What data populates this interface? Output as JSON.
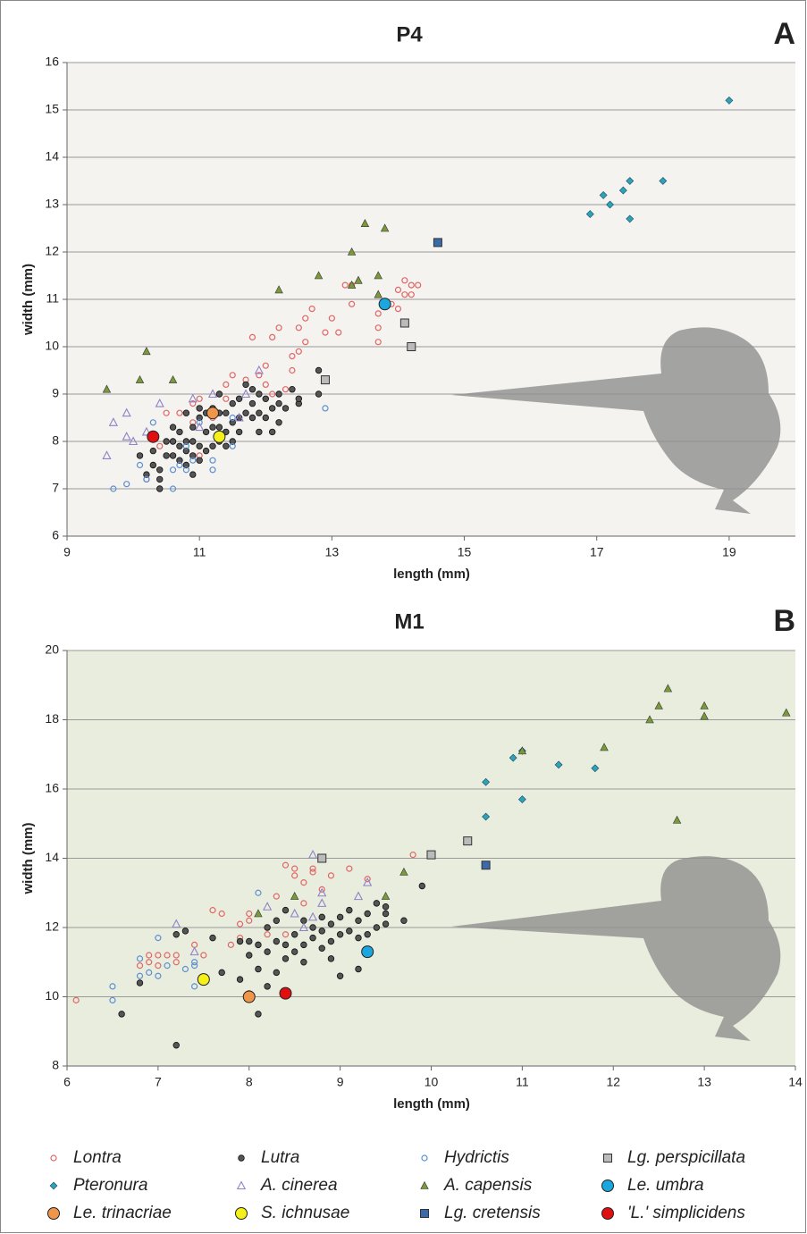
{
  "chart_data": [
    {
      "type": "scatter",
      "title": "P4",
      "panel_label": "A",
      "x_label": "length (mm)",
      "y_label": "width (mm)",
      "background": "#f4f3ef",
      "xlim": [
        9,
        20
      ],
      "xticks": [
        9,
        11,
        13,
        15,
        17,
        19
      ],
      "ylim": [
        6,
        16
      ],
      "yticks": [
        6,
        7,
        8,
        9,
        10,
        11,
        12,
        13,
        14,
        15,
        16
      ],
      "grid": true,
      "series": [
        {
          "name": "Lontra",
          "color": "#e06666",
          "marker": "open-circle",
          "x": [
            10.2,
            10.4,
            10.5,
            10.7,
            10.8,
            10.9,
            11.0,
            11.0,
            11.3,
            11.4,
            11.5,
            11.7,
            11.8,
            11.9,
            12.0,
            12.0,
            12.1,
            12.1,
            12.2,
            12.3,
            12.4,
            12.4,
            12.5,
            12.5,
            12.6,
            12.6,
            12.7,
            12.9,
            13.0,
            13.1,
            13.2,
            13.3,
            13.3,
            13.7,
            13.7,
            13.7,
            13.9,
            14.0,
            14.0,
            14.1,
            14.1,
            14.2,
            14.3,
            14.2,
            11.4,
            11.2,
            10.9
          ],
          "values": [
            7.2,
            7.9,
            8.6,
            8.6,
            8.6,
            8.8,
            8.9,
            7.7,
            9.0,
            9.2,
            9.4,
            9.3,
            10.2,
            9.4,
            9.2,
            9.6,
            9.0,
            10.2,
            10.4,
            9.1,
            9.5,
            9.8,
            10.4,
            9.9,
            10.1,
            10.6,
            10.8,
            10.3,
            10.6,
            10.3,
            11.3,
            10.9,
            11.3,
            10.1,
            10.4,
            10.7,
            10.9,
            11.2,
            10.8,
            11.1,
            11.4,
            11.3,
            11.3,
            11.1,
            8.9,
            8.5,
            8.4
          ]
        },
        {
          "name": "Lutra",
          "color": "#555555",
          "marker": "circle",
          "x": [
            10.1,
            10.2,
            10.3,
            10.4,
            10.4,
            10.4,
            10.5,
            10.5,
            10.6,
            10.6,
            10.7,
            10.7,
            10.7,
            10.8,
            10.8,
            10.8,
            10.9,
            10.9,
            10.9,
            10.9,
            11.0,
            11.0,
            11.0,
            11.1,
            11.1,
            11.1,
            11.2,
            11.2,
            11.2,
            11.3,
            11.3,
            11.3,
            11.4,
            11.4,
            11.4,
            11.5,
            11.5,
            11.5,
            11.6,
            11.6,
            11.6,
            11.7,
            11.7,
            11.8,
            11.8,
            11.9,
            11.9,
            12.0,
            12.0,
            12.1,
            12.1,
            12.2,
            12.2,
            12.3,
            12.4,
            12.5,
            12.5,
            12.8,
            12.8,
            10.3,
            10.6,
            11.3,
            11.8,
            12.2,
            11.9,
            11.0,
            10.8
          ],
          "values": [
            7.7,
            7.3,
            7.5,
            7.0,
            7.2,
            7.4,
            7.7,
            8.0,
            7.7,
            8.0,
            7.6,
            7.9,
            8.2,
            7.5,
            7.8,
            8.0,
            7.3,
            7.7,
            8.0,
            8.3,
            7.6,
            7.9,
            8.5,
            7.8,
            8.2,
            8.6,
            7.9,
            8.3,
            8.7,
            8.0,
            8.3,
            8.6,
            7.9,
            8.2,
            8.6,
            8.0,
            8.4,
            8.8,
            8.2,
            8.5,
            8.9,
            8.6,
            9.2,
            8.5,
            8.8,
            8.6,
            9.0,
            8.5,
            8.9,
            8.2,
            8.7,
            8.4,
            9.0,
            8.7,
            9.1,
            8.8,
            8.9,
            9.5,
            9.0,
            7.8,
            8.3,
            9.0,
            9.1,
            8.8,
            8.2,
            8.7,
            8.6
          ]
        },
        {
          "name": "Hydrictis",
          "color": "#5b8fd0",
          "marker": "open-circle",
          "x": [
            9.7,
            9.9,
            10.1,
            10.2,
            10.3,
            10.6,
            10.6,
            10.7,
            10.8,
            10.9,
            11.0,
            11.2,
            11.2,
            11.5,
            11.5,
            12.9,
            10.8
          ],
          "values": [
            7.0,
            7.1,
            7.5,
            7.2,
            8.4,
            7.0,
            7.4,
            7.5,
            7.9,
            7.6,
            8.4,
            7.4,
            7.6,
            8.5,
            7.9,
            8.7,
            7.4
          ]
        },
        {
          "name": "Lg. perspicillata",
          "color": "#bbbbbb",
          "marker": "square",
          "x": [
            12.9,
            14.1,
            14.2
          ],
          "values": [
            9.3,
            10.5,
            10.0
          ]
        },
        {
          "name": "Pteronura",
          "color": "#2aa5b5",
          "marker": "diamond",
          "x": [
            16.9,
            17.1,
            17.2,
            17.4,
            17.5,
            17.5,
            18.0,
            19.0
          ],
          "values": [
            12.8,
            13.2,
            13.0,
            13.3,
            13.5,
            12.7,
            13.5,
            15.2
          ]
        },
        {
          "name": "A. cinerea",
          "color": "#8f82c8",
          "marker": "open-triangle",
          "x": [
            9.6,
            9.7,
            9.9,
            9.9,
            10.0,
            10.2,
            10.4,
            10.9,
            11.0,
            11.2,
            11.9,
            11.7,
            11.6
          ],
          "values": [
            7.7,
            8.4,
            8.6,
            8.1,
            8.0,
            8.2,
            8.8,
            8.9,
            8.3,
            9.0,
            9.5,
            9.0,
            8.5
          ]
        },
        {
          "name": "A. capensis",
          "color": "#7a9a3a",
          "marker": "triangle",
          "x": [
            9.6,
            10.1,
            10.2,
            10.6,
            12.2,
            12.8,
            13.3,
            13.3,
            13.4,
            13.5,
            13.7,
            13.7,
            13.8
          ],
          "values": [
            9.1,
            9.3,
            9.9,
            9.3,
            11.2,
            11.5,
            11.3,
            12.0,
            11.4,
            12.6,
            11.5,
            11.1,
            12.5
          ]
        },
        {
          "name": "Le. umbra",
          "color": "#1aa7e0",
          "marker": "big-circle",
          "x": [
            13.8
          ],
          "values": [
            10.9
          ]
        },
        {
          "name": "Le. trinacriae",
          "color": "#f0964a",
          "marker": "big-circle",
          "x": [
            11.2
          ],
          "values": [
            8.6
          ]
        },
        {
          "name": "S. ichnusae",
          "color": "#f5ef1a",
          "marker": "big-circle",
          "x": [
            11.3
          ],
          "values": [
            8.1
          ]
        },
        {
          "name": "Lg. cretensis",
          "color": "#3a6aa8",
          "marker": "square",
          "x": [
            14.6
          ],
          "values": [
            12.2
          ]
        },
        {
          "name": "'L.' simplicidens",
          "color": "#e01010",
          "marker": "big-circle",
          "x": [
            10.3
          ],
          "values": [
            8.1
          ]
        }
      ]
    },
    {
      "type": "scatter",
      "title": "M1",
      "panel_label": "B",
      "x_label": "length (mm)",
      "y_label": "width (mm)",
      "background": "#e9eddd",
      "xlim": [
        6,
        14
      ],
      "xticks": [
        6,
        7,
        8,
        9,
        10,
        11,
        12,
        13,
        14
      ],
      "ylim": [
        8,
        20
      ],
      "yticks": [
        8,
        10,
        12,
        14,
        16,
        18,
        20
      ],
      "grid": true,
      "series": [
        {
          "color": "#e06666",
          "marker": "open-circle",
          "x": [
            6.1,
            6.8,
            6.9,
            6.9,
            7.0,
            7.0,
            7.1,
            7.2,
            7.2,
            7.4,
            7.5,
            7.6,
            7.7,
            7.8,
            7.9,
            7.9,
            8.0,
            8.0,
            8.2,
            8.3,
            8.5,
            8.4,
            8.6,
            8.6,
            8.7,
            8.7,
            8.9,
            9.1,
            9.3,
            9.8,
            8.2,
            8.8,
            8.0,
            8.4,
            8.5,
            8.8
          ],
          "values": [
            9.9,
            10.9,
            11.0,
            11.2,
            10.9,
            11.2,
            11.2,
            11.0,
            11.2,
            11.5,
            11.2,
            12.5,
            12.4,
            11.5,
            11.7,
            12.1,
            12.2,
            12.4,
            12.0,
            12.9,
            13.5,
            13.8,
            13.3,
            12.7,
            13.7,
            13.6,
            13.5,
            13.7,
            13.4,
            14.1,
            11.8,
            12.3,
            10.1,
            11.8,
            13.7,
            13.1
          ]
        },
        {
          "color": "#555555",
          "marker": "circle",
          "x": [
            6.6,
            6.8,
            7.2,
            7.2,
            7.3,
            7.6,
            7.7,
            7.9,
            8.0,
            8.0,
            8.1,
            8.1,
            8.1,
            8.2,
            8.2,
            8.3,
            8.3,
            8.3,
            8.4,
            8.4,
            8.4,
            8.5,
            8.5,
            8.6,
            8.6,
            8.6,
            8.7,
            8.7,
            8.8,
            8.8,
            8.8,
            8.9,
            8.9,
            9.0,
            9.0,
            9.0,
            9.1,
            9.1,
            9.2,
            9.2,
            9.3,
            9.3,
            9.4,
            9.4,
            9.5,
            9.5,
            9.7,
            9.9,
            7.9,
            9.2,
            8.9,
            9.5,
            8.2
          ],
          "values": [
            9.5,
            10.4,
            8.6,
            11.8,
            11.9,
            11.7,
            10.7,
            11.6,
            11.2,
            11.6,
            9.5,
            10.8,
            11.5,
            11.3,
            12.0,
            10.7,
            11.6,
            12.2,
            11.1,
            11.5,
            12.5,
            11.3,
            11.8,
            11.0,
            11.5,
            12.2,
            11.7,
            12.0,
            11.4,
            11.9,
            12.3,
            11.6,
            12.1,
            10.6,
            11.8,
            12.3,
            11.9,
            12.5,
            11.7,
            12.2,
            11.8,
            12.4,
            12.0,
            12.7,
            12.1,
            12.6,
            12.2,
            13.2,
            10.5,
            10.8,
            11.1,
            12.4,
            10.3
          ]
        },
        {
          "color": "#5b8fd0",
          "marker": "open-circle",
          "x": [
            6.5,
            6.5,
            6.8,
            6.8,
            6.9,
            7.0,
            7.0,
            7.1,
            7.3,
            7.4,
            7.4,
            7.4,
            8.1
          ],
          "values": [
            10.3,
            9.9,
            10.6,
            11.1,
            10.7,
            10.6,
            11.7,
            10.9,
            10.8,
            10.3,
            10.9,
            11.0,
            13.0
          ]
        },
        {
          "color": "#bbbbbb",
          "marker": "square",
          "x": [
            8.8,
            10.0,
            10.4
          ],
          "values": [
            14.0,
            14.1,
            14.5
          ]
        },
        {
          "color": "#2aa5b5",
          "marker": "diamond",
          "x": [
            10.6,
            10.6,
            10.9,
            11.0,
            11.4,
            11.8,
            11.0
          ],
          "values": [
            16.2,
            15.2,
            16.9,
            15.7,
            16.7,
            16.6,
            17.1
          ]
        },
        {
          "color": "#8f82c8",
          "marker": "open-triangle",
          "x": [
            7.2,
            7.4,
            8.2,
            8.5,
            8.7,
            8.7,
            8.8,
            8.8,
            8.6,
            9.2,
            9.3
          ],
          "values": [
            12.1,
            11.3,
            12.6,
            12.4,
            14.1,
            12.3,
            13.0,
            12.7,
            12.0,
            12.9,
            13.3
          ]
        },
        {
          "color": "#7a9a3a",
          "marker": "triangle",
          "x": [
            8.1,
            8.5,
            9.5,
            9.7,
            11.0,
            11.9,
            12.4,
            12.5,
            12.6,
            12.7,
            13.0,
            13.0,
            13.9
          ],
          "values": [
            12.4,
            12.9,
            12.9,
            13.6,
            17.1,
            17.2,
            18.0,
            18.4,
            18.9,
            15.1,
            18.4,
            18.1,
            18.2
          ]
        },
        {
          "color": "#1aa7e0",
          "marker": "big-circle",
          "x": [
            9.3
          ],
          "values": [
            11.3
          ]
        },
        {
          "color": "#f0964a",
          "marker": "big-circle",
          "x": [
            8.0
          ],
          "values": [
            10.0
          ]
        },
        {
          "color": "#f5ef1a",
          "marker": "big-circle",
          "x": [
            7.5
          ],
          "values": [
            10.5
          ]
        },
        {
          "color": "#3a6aa8",
          "marker": "square",
          "x": [
            10.6
          ],
          "values": [
            13.8
          ]
        },
        {
          "color": "#e01010",
          "marker": "big-circle",
          "x": [
            8.4
          ],
          "values": [
            10.1
          ]
        }
      ]
    }
  ]
}
